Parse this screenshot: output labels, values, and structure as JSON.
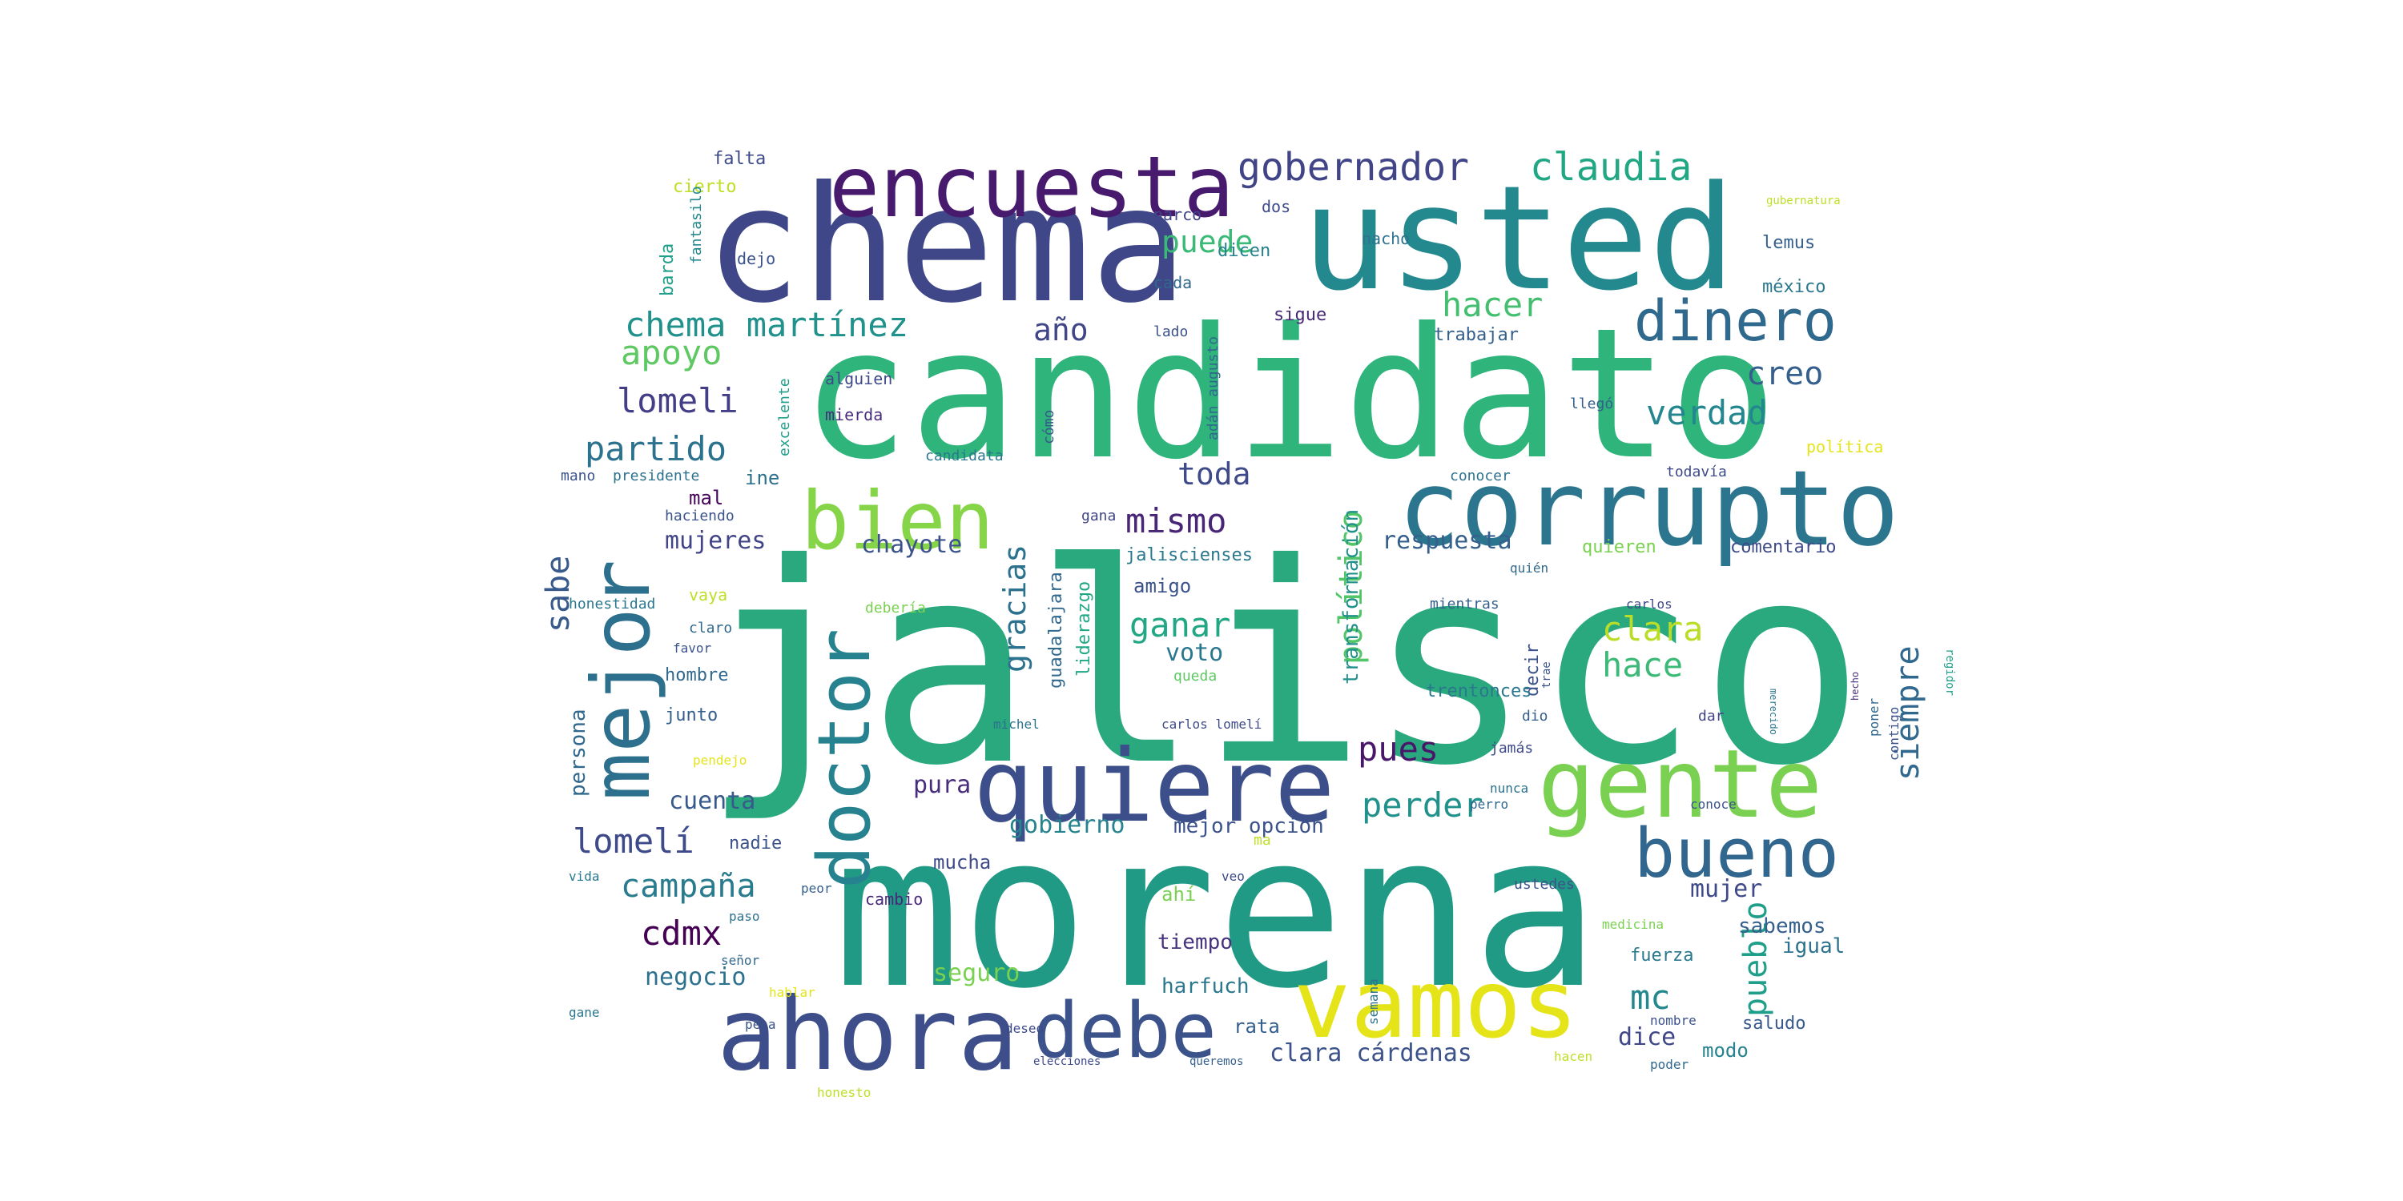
{
  "word_cloud": {
    "shape": "rounded rectangle",
    "palette": "viridis",
    "words": [
      {
        "text": "jalisco",
        "color": "#2aa97e"
      },
      {
        "text": "morena",
        "color": "#209a85"
      },
      {
        "text": "candidato",
        "color": "#2fb47c"
      },
      {
        "text": "chema",
        "color": "#3f4788"
      },
      {
        "text": "usted",
        "color": "#23898e"
      },
      {
        "text": "corrupto",
        "color": "#2b768e"
      },
      {
        "text": "quiere",
        "color": "#3c4f8a"
      },
      {
        "text": "ahora",
        "color": "#3d4e8a"
      },
      {
        "text": "vamos",
        "color": "#e5e419"
      },
      {
        "text": "gente",
        "color": "#7ad151"
      },
      {
        "text": "encuesta",
        "color": "#471a6e"
      },
      {
        "text": "bien",
        "color": "#86d549"
      },
      {
        "text": "mejor",
        "color": "#2d708e"
      },
      {
        "text": "doctor",
        "color": "#26828e"
      },
      {
        "text": "debe",
        "color": "#3b528b"
      },
      {
        "text": "bueno",
        "color": "#31668e"
      },
      {
        "text": "dinero",
        "color": "#30698e"
      },
      {
        "text": "gobernador",
        "color": "#414487"
      },
      {
        "text": "claudia",
        "color": "#22a785"
      },
      {
        "text": "chema martínez",
        "color": "#21918c"
      },
      {
        "text": "apoyo",
        "color": "#5ec962"
      },
      {
        "text": "puede",
        "color": "#3aba76"
      },
      {
        "text": "hacer",
        "color": "#44bf70"
      },
      {
        "text": "año",
        "color": "#404688"
      },
      {
        "text": "lomeli",
        "color": "#433e85"
      },
      {
        "text": "partido",
        "color": "#2c728e"
      },
      {
        "text": "creo",
        "color": "#355f8d"
      },
      {
        "text": "verdad",
        "color": "#24868e"
      },
      {
        "text": "toda",
        "color": "#3e4a89"
      },
      {
        "text": "mismo",
        "color": "#482576"
      },
      {
        "text": "sabe",
        "color": "#38598c"
      },
      {
        "text": "político",
        "color": "#52c569"
      },
      {
        "text": "ganar",
        "color": "#22a785"
      },
      {
        "text": "clara",
        "color": "#bade28"
      },
      {
        "text": "hace",
        "color": "#3aba76"
      },
      {
        "text": "siempre",
        "color": "#31688e"
      },
      {
        "text": "pues",
        "color": "#481769"
      },
      {
        "text": "perder",
        "color": "#21918c"
      },
      {
        "text": "gracias",
        "color": "#2c728e"
      },
      {
        "text": "lomelí",
        "color": "#3e4a89"
      },
      {
        "text": "campaña",
        "color": "#287c8e"
      },
      {
        "text": "mc",
        "color": "#24878e"
      },
      {
        "text": "pueblo",
        "color": "#1f9e89"
      },
      {
        "text": "cdmx",
        "color": "#440154"
      },
      {
        "text": "chayote",
        "color": "#3b528b"
      },
      {
        "text": "respuesta",
        "color": "#355f8d"
      },
      {
        "text": "mujeres",
        "color": "#414487"
      },
      {
        "text": "transformación",
        "color": "#21918c"
      },
      {
        "text": "voto",
        "color": "#2a788e"
      },
      {
        "text": "gobierno",
        "color": "#25848e"
      },
      {
        "text": "mujer",
        "color": "#3e4989"
      },
      {
        "text": "seguro",
        "color": "#7ad151"
      },
      {
        "text": "negocio",
        "color": "#2c728e"
      },
      {
        "text": "clara cárdenas",
        "color": "#3b528b"
      },
      {
        "text": "dice",
        "color": "#3f4788"
      },
      {
        "text": "cuenta",
        "color": "#38598c"
      },
      {
        "text": "pura",
        "color": "#472d7b"
      },
      {
        "text": "persona",
        "color": "#31688e"
      },
      {
        "text": "sabemos",
        "color": "#355f8d"
      },
      {
        "text": "mejor opción",
        "color": "#3b528b"
      },
      {
        "text": "harfuch",
        "color": "#2a788e"
      },
      {
        "text": "tiempo",
        "color": "#46327e"
      },
      {
        "text": "igual",
        "color": "#2c728e"
      },
      {
        "text": "modo",
        "color": "#26828e"
      },
      {
        "text": "rata",
        "color": "#355f8d"
      },
      {
        "text": "mucha",
        "color": "#3e4a89"
      },
      {
        "text": "mal",
        "color": "#450559"
      },
      {
        "text": "ine",
        "color": "#2d708e"
      },
      {
        "text": "amigo",
        "color": "#3b528b"
      },
      {
        "text": "liderazgo",
        "color": "#22a785"
      },
      {
        "text": "guadalajara",
        "color": "#31688e"
      },
      {
        "text": "jaliscienses",
        "color": "#2a788e"
      },
      {
        "text": "comentario",
        "color": "#3e4a89"
      },
      {
        "text": "quieren",
        "color": "#7ad151"
      },
      {
        "text": "decir",
        "color": "#3b528b"
      },
      {
        "text": "trentonces",
        "color": "#2a788e"
      },
      {
        "text": "junto",
        "color": "#355f8d"
      },
      {
        "text": "hombre",
        "color": "#31688e"
      },
      {
        "text": "nadie",
        "color": "#3b528b"
      },
      {
        "text": "cambio",
        "color": "#482878"
      },
      {
        "text": "ahí",
        "color": "#7ad151"
      },
      {
        "text": "fuerza",
        "color": "#2a788e"
      },
      {
        "text": "saludo",
        "color": "#38598c"
      },
      {
        "text": "falta",
        "color": "#3e4a89"
      },
      {
        "text": "cierto",
        "color": "#bddf26"
      },
      {
        "text": "barda",
        "color": "#1f9e89"
      },
      {
        "text": "fantasilo",
        "color": "#23898e"
      },
      {
        "text": "narco",
        "color": "#414487"
      },
      {
        "text": "dos",
        "color": "#3e4a89"
      },
      {
        "text": "nacho",
        "color": "#2c728e"
      },
      {
        "text": "lemus",
        "color": "#355f8d"
      },
      {
        "text": "dicen",
        "color": "#26828e"
      },
      {
        "text": "cada",
        "color": "#31688e"
      },
      {
        "text": "dejo",
        "color": "#3b528b"
      },
      {
        "text": "sigue",
        "color": "#482878"
      },
      {
        "text": "méxico",
        "color": "#2a788e"
      },
      {
        "text": "trabajar",
        "color": "#355f8d"
      },
      {
        "text": "alguien",
        "color": "#3e4a89"
      },
      {
        "text": "mierda",
        "color": "#472d7b"
      },
      {
        "text": "lado",
        "color": "#3b528b"
      },
      {
        "text": "adán augusto",
        "color": "#31688e"
      },
      {
        "text": "llegó",
        "color": "#355f8d"
      },
      {
        "text": "excelente",
        "color": "#1f9e89"
      },
      {
        "text": "mano",
        "color": "#3b528b"
      },
      {
        "text": "conocer",
        "color": "#2c728e"
      },
      {
        "text": "todavía",
        "color": "#3e4a89"
      },
      {
        "text": "política",
        "color": "#e5e419"
      },
      {
        "text": "candidata",
        "color": "#2a788e"
      },
      {
        "text": "cómo",
        "color": "#38598c"
      },
      {
        "text": "gana",
        "color": "#414487"
      },
      {
        "text": "presidente",
        "color": "#2c728e"
      },
      {
        "text": "haciendo",
        "color": "#3b528b"
      },
      {
        "text": "quién",
        "color": "#31688e"
      },
      {
        "text": "mientras",
        "color": "#355f8d"
      },
      {
        "text": "carlos",
        "color": "#3e4a89"
      },
      {
        "text": "honestidad",
        "color": "#2a788e"
      },
      {
        "text": "vaya",
        "color": "#bddf26"
      },
      {
        "text": "claro",
        "color": "#31688e"
      },
      {
        "text": "debería",
        "color": "#7ad151"
      },
      {
        "text": "favor",
        "color": "#3b528b"
      },
      {
        "text": "queda",
        "color": "#5ec962"
      },
      {
        "text": "michel",
        "color": "#2c728e"
      },
      {
        "text": "carlos lomelí",
        "color": "#3e4a89"
      },
      {
        "text": "dio",
        "color": "#355f8d"
      },
      {
        "text": "dar",
        "color": "#414487"
      },
      {
        "text": "poner",
        "color": "#31688e"
      },
      {
        "text": "contigo",
        "color": "#3b528b"
      },
      {
        "text": "pendejo",
        "color": "#e5e419"
      },
      {
        "text": "jamás",
        "color": "#3e4a89"
      },
      {
        "text": "nunca",
        "color": "#2c728e"
      },
      {
        "text": "perro",
        "color": "#31688e"
      },
      {
        "text": "conoce",
        "color": "#3b528b"
      },
      {
        "text": "vida",
        "color": "#2a788e"
      },
      {
        "text": "peor",
        "color": "#355f8d"
      },
      {
        "text": "veo",
        "color": "#3e4a89"
      },
      {
        "text": "ma",
        "color": "#bddf26"
      },
      {
        "text": "ustedes",
        "color": "#3b528b"
      },
      {
        "text": "paso",
        "color": "#2c728e"
      },
      {
        "text": "medicina",
        "color": "#7ad151"
      },
      {
        "text": "señor",
        "color": "#31688e"
      },
      {
        "text": "hablar",
        "color": "#e5e419"
      },
      {
        "text": "pena",
        "color": "#3b528b"
      },
      {
        "text": "gane",
        "color": "#2a788e"
      },
      {
        "text": "deseo",
        "color": "#3e4a89"
      },
      {
        "text": "honesto",
        "color": "#bddf26"
      },
      {
        "text": "semana",
        "color": "#2c728e"
      },
      {
        "text": "nombre",
        "color": "#3b528b"
      },
      {
        "text": "poder",
        "color": "#31688e"
      },
      {
        "text": "hacen",
        "color": "#bddf26"
      },
      {
        "text": "queremos",
        "color": "#355f8d"
      },
      {
        "text": "elecciones",
        "color": "#3e4a89"
      },
      {
        "text": "regidor",
        "color": "#1f9e89"
      },
      {
        "text": "merecido",
        "color": "#2a788e"
      },
      {
        "text": "hecho",
        "color": "#472d7b"
      },
      {
        "text": "trae",
        "color": "#3b528b"
      },
      {
        "text": "gubernatura",
        "color": "#bddf26"
      }
    ]
  }
}
